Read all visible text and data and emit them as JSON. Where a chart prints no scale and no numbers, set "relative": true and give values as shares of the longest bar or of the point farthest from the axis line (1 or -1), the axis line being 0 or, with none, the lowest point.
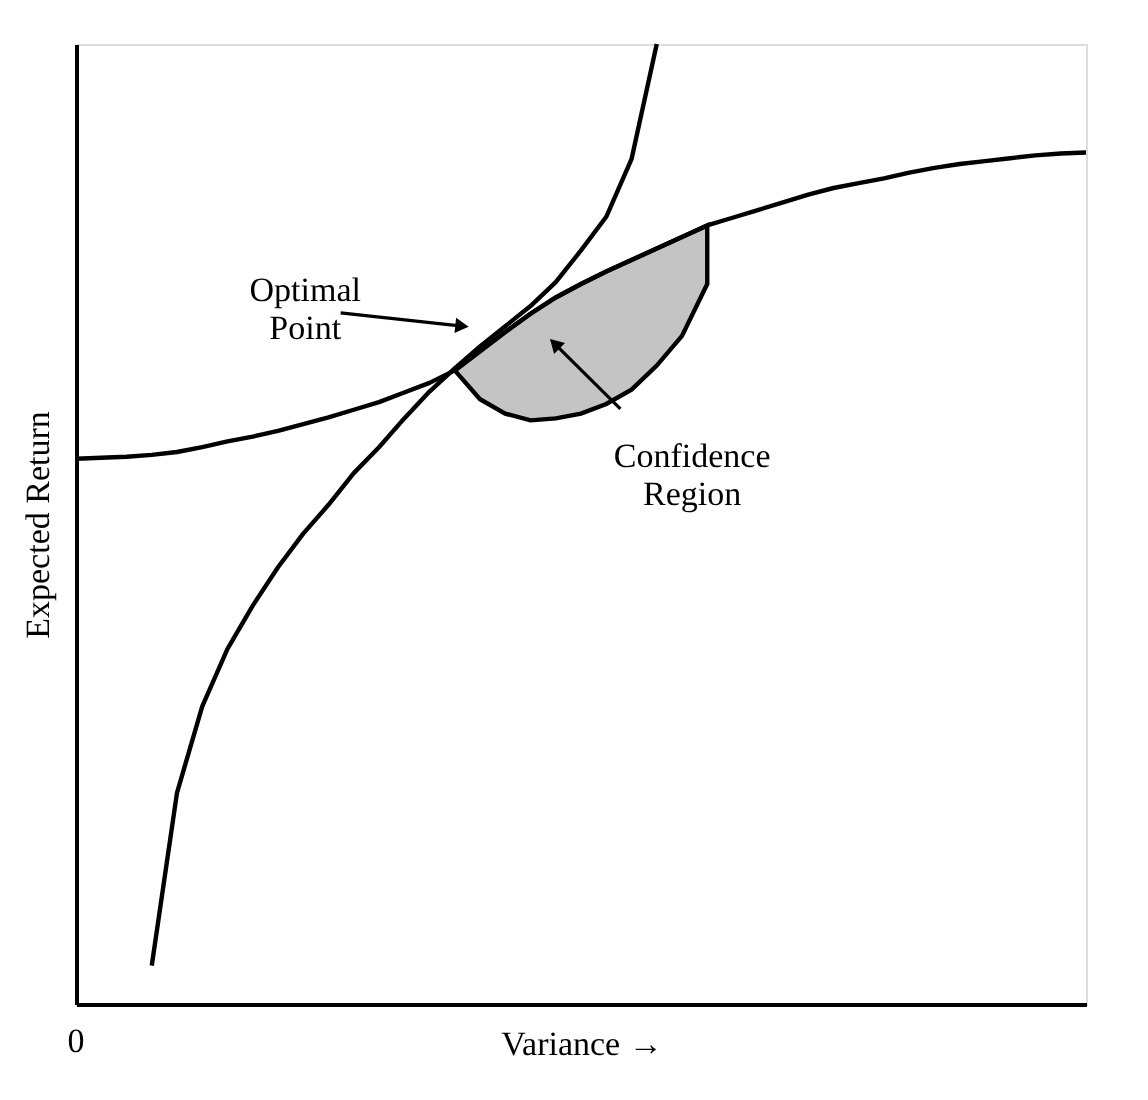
{
  "chart_data": {
    "type": "line",
    "relative": true,
    "xlabel": "Variance →",
    "ylabel": "Expected Return",
    "categories": [
      null,
      null,
      null,
      null,
      null,
      null,
      null,
      null,
      null,
      null,
      null,
      null,
      null,
      null,
      null,
      null,
      null,
      null,
      null,
      null,
      null,
      null,
      null,
      null,
      null,
      null,
      null,
      null,
      null,
      null,
      null,
      null,
      null,
      null,
      null,
      null,
      null,
      null,
      null,
      null,
      null
    ],
    "series": [
      {
        "color": "#000000",
        "values": [
          0.568,
          0.569,
          0.57,
          0.572,
          0.575,
          0.58,
          0.586,
          0.591,
          0.597,
          0.604,
          0.611,
          0.619,
          0.627,
          0.637,
          0.647,
          0.66,
          0.68,
          0.7,
          0.719,
          0.736,
          0.75,
          0.763,
          0.775,
          0.787,
          0.799,
          0.811,
          0.819,
          0.827,
          0.835,
          0.843,
          0.85,
          0.855,
          0.86,
          0.866,
          0.871,
          0.875,
          0.878,
          0.881,
          0.884,
          0.886,
          0.887
        ],
        "lower": [
          null,
          null,
          null,
          null,
          null,
          null,
          null,
          null,
          null,
          null,
          null,
          null,
          null,
          null,
          null,
          0.66,
          0.63,
          0.615,
          0.608,
          0.61,
          0.615,
          0.625,
          0.64,
          0.665,
          0.696,
          0.75,
          null,
          null,
          null,
          null,
          null,
          null,
          null,
          null,
          null,
          null,
          null,
          null,
          null,
          null,
          null
        ],
        "upper": [
          null,
          null,
          null,
          null,
          null,
          null,
          null,
          null,
          null,
          null,
          null,
          null,
          null,
          null,
          null,
          0.66,
          0.68,
          0.7,
          0.719,
          0.736,
          0.75,
          0.763,
          0.775,
          0.787,
          0.799,
          0.811,
          null,
          null,
          null,
          null,
          null,
          null,
          null,
          null,
          null,
          null,
          null,
          null,
          null,
          null,
          null
        ]
      },
      {
        "color": "#000000",
        "values": [
          null,
          null,
          null,
          0.04,
          0.22,
          0.31,
          0.37,
          0.415,
          0.455,
          0.49,
          0.52,
          0.553,
          0.58,
          0.61,
          0.638,
          0.662,
          0.685,
          0.706,
          0.727,
          0.752,
          0.785,
          0.82,
          0.88,
          1.0,
          null,
          null,
          null,
          null,
          null,
          null,
          null,
          null,
          null,
          null,
          null,
          null,
          null,
          null,
          null,
          null,
          null
        ]
      }
    ],
    "annotations": [
      "Optimal Point",
      "Confidence Region",
      "0"
    ],
    "marker": "none",
    "line_style": "solid"
  }
}
